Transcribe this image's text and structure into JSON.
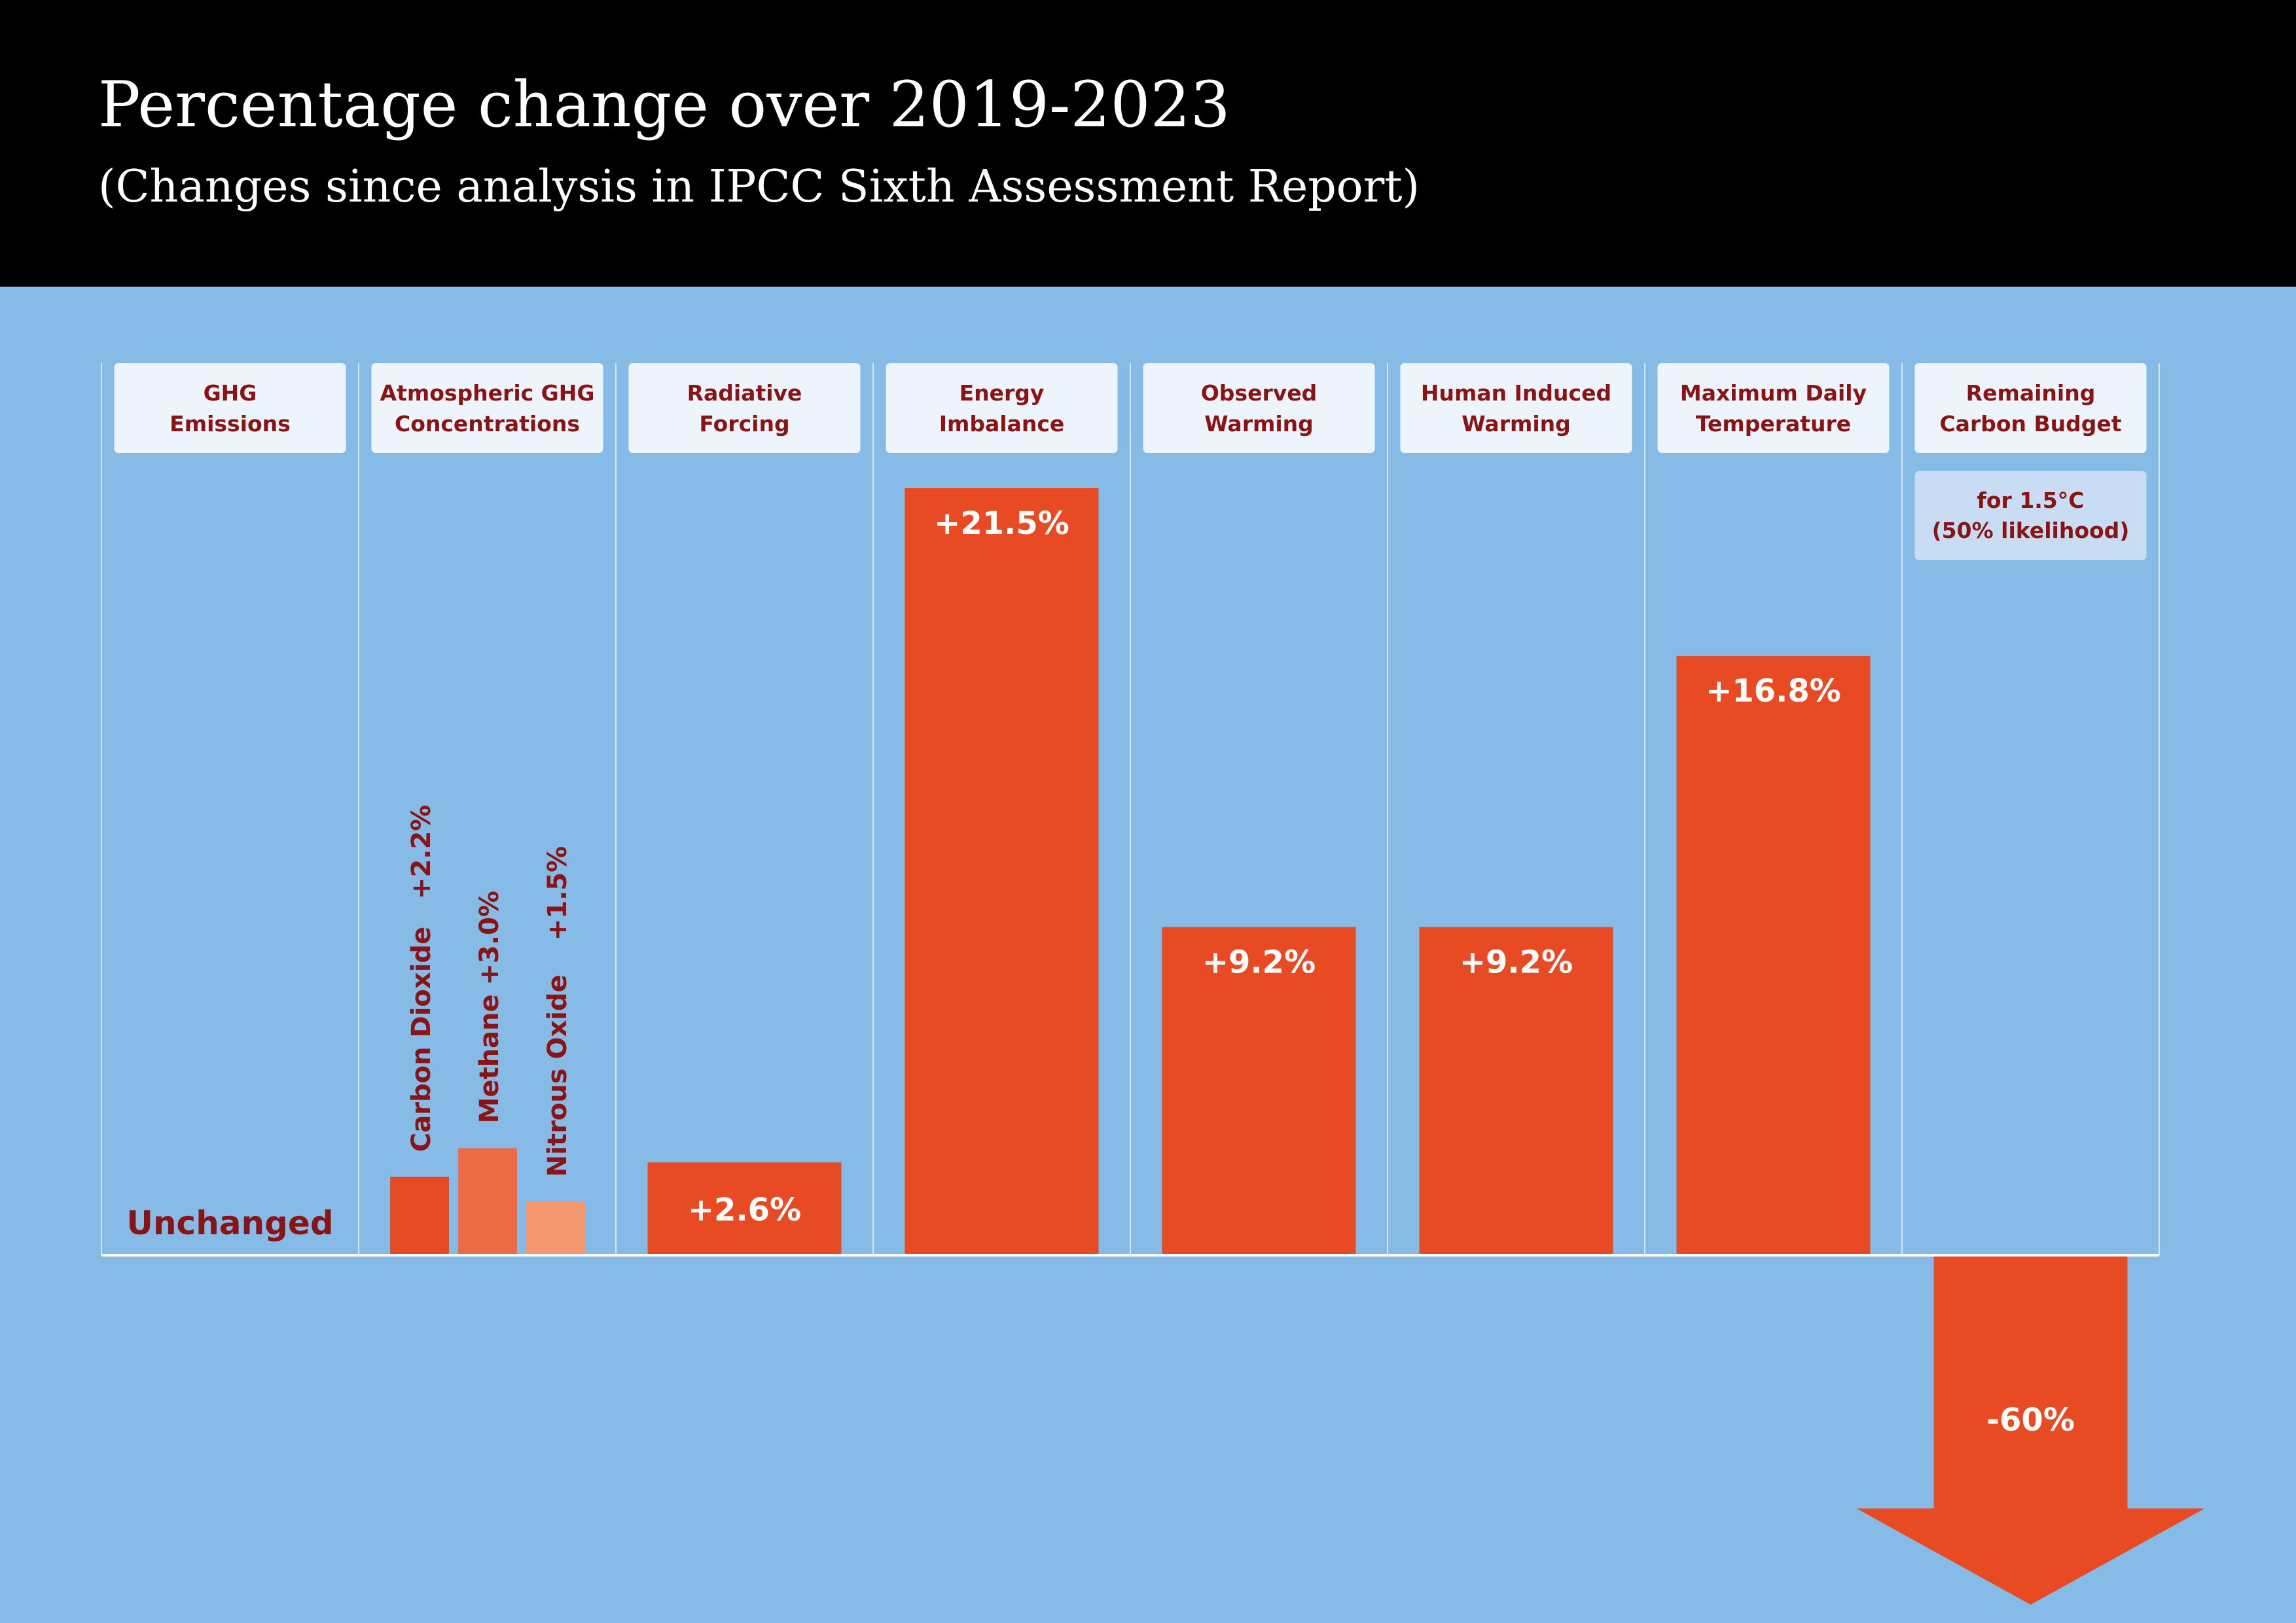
{
  "title": "Percentage change over 2019-2023",
  "subtitle": "(Changes since analysis in IPCC Sixth Assessment Report)",
  "colors": {
    "background": "#85bbe6",
    "header_background": "#000000",
    "bar": "#e84b24",
    "bar_methane": "#ec6b45",
    "bar_nitrous": "#f4966e",
    "label_text": "#8a1414",
    "header_box": "#eef4fc",
    "sub_box": "#c8ddf4",
    "value_text": "#ffffff"
  },
  "chart_data": {
    "type": "bar",
    "categories": [
      "GHG Emissions",
      "Atmospheric GHG Concentrations",
      "Radiative Forcing",
      "Energy Imbalance",
      "Observed Warming",
      "Human Induced Warming",
      "Maximum Daily Temperature",
      "Remaining Carbon Budget"
    ],
    "category_lines": [
      [
        "GHG",
        "Emissions"
      ],
      [
        "Atmospheric GHG",
        "Concentrations"
      ],
      [
        "Radiative",
        "Forcing"
      ],
      [
        "Energy",
        "Imbalance"
      ],
      [
        "Observed",
        "Warming"
      ],
      [
        "Human Induced",
        "Warming"
      ],
      [
        "Maximum Daily",
        "Temperature"
      ],
      [
        "Remaining",
        "Carbon Budget"
      ]
    ],
    "values": [
      0,
      null,
      2.6,
      21.5,
      9.2,
      9.2,
      16.8,
      -60
    ],
    "value_labels": [
      "Unchanged",
      "",
      "+2.6%",
      "+21.5%",
      "+9.2%",
      "+9.2%",
      "+16.8%",
      "-60%"
    ],
    "sub_series": [
      {
        "name": "Carbon Dioxide",
        "value": 2.2,
        "label": "+2.2%"
      },
      {
        "name": "Methane",
        "value": 3.0,
        "label": "+3.0%"
      },
      {
        "name": "Nitrous Oxide",
        "value": 1.5,
        "label": "+1.5%"
      }
    ],
    "annotation": [
      "for 1.5°C",
      "(50% likelihood)"
    ],
    "ylim": [
      0,
      21.5
    ],
    "grid": false,
    "xlabel": "",
    "ylabel": ""
  }
}
